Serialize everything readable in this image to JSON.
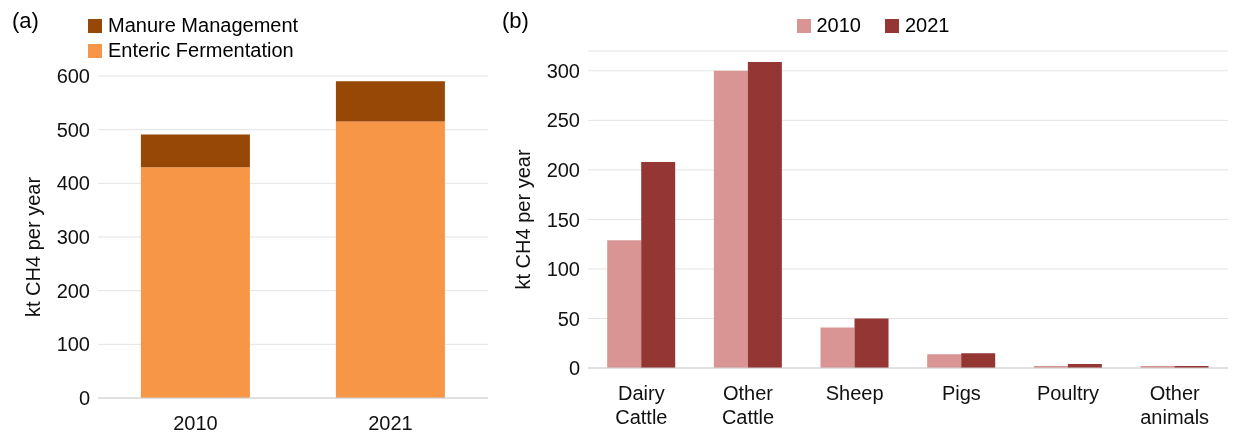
{
  "chart_data": [
    {
      "type": "bar",
      "title": "(a)",
      "ylabel": "kt CH4 per year",
      "categories": [
        "2010",
        "2021"
      ],
      "stacked": true,
      "legend": "top left",
      "grid": "y",
      "ylim": [
        0,
        600
      ],
      "yticks": [
        0,
        100,
        200,
        300,
        400,
        500,
        600
      ],
      "series": [
        {
          "name": "Enteric Fermentation",
          "color": "#f79646",
          "values": [
            430,
            515
          ]
        },
        {
          "name": "Manure Management",
          "color": "#974706",
          "values": [
            61,
            75
          ]
        }
      ]
    },
    {
      "type": "bar",
      "title": "(b)",
      "ylabel": "kt CH4 per year",
      "categories": [
        "Dairy Cattle",
        "Other Cattle",
        "Sheep",
        "Pigs",
        "Poultry",
        "Other animals"
      ],
      "legend": "top",
      "grid": "y",
      "ylim": [
        0,
        320
      ],
      "yticks": [
        0,
        50,
        100,
        150,
        200,
        250,
        300
      ],
      "series": [
        {
          "name": "2010",
          "color": "#d99594",
          "values": [
            129,
            300,
            41,
            14,
            2,
            2
          ]
        },
        {
          "name": "2021",
          "color": "#943634",
          "values": [
            208,
            309,
            50,
            15,
            4,
            2
          ]
        }
      ]
    }
  ]
}
